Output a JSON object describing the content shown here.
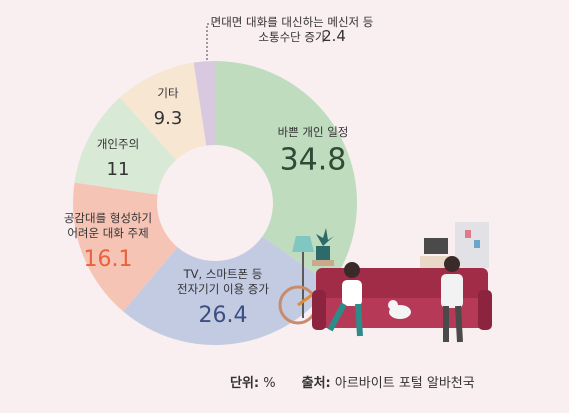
{
  "chart_data": {
    "type": "pie",
    "variant": "donut",
    "unit": "%",
    "slices": [
      {
        "label_lines": [
          "바쁜 개인 일정"
        ],
        "value": 34.8,
        "color": "#bfdcbf",
        "value_color": "#2f4a35"
      },
      {
        "label_lines": [
          "TV, 스마트폰 등",
          "전자기기 이용 증가"
        ],
        "value": 26.4,
        "color": "#c3cbe3",
        "value_color": "#3c4e82"
      },
      {
        "label_lines": [
          "공감대를 형성하기",
          "어려운 대화 주제"
        ],
        "value": 16.1,
        "color": "#f6c4b5",
        "value_color": "#e8623c"
      },
      {
        "label_lines": [
          "개인주의"
        ],
        "value": 11,
        "color": "#d8e9d6",
        "value_color": "#333333"
      },
      {
        "label_lines": [
          "기타"
        ],
        "value": 9.3,
        "color": "#f7e6d2",
        "value_color": "#333333"
      },
      {
        "label_lines": [
          "면대면 대화를 대신하는 메신저 등",
          "소통수단 증가"
        ],
        "value": 2.4,
        "color": "#d8c8e0",
        "value_color": "#333333"
      }
    ]
  },
  "footer": {
    "unit_key": "단위:",
    "unit_value": " %",
    "source_key": "출처:",
    "source_value": " 아르바이트 포털 알바천국"
  }
}
